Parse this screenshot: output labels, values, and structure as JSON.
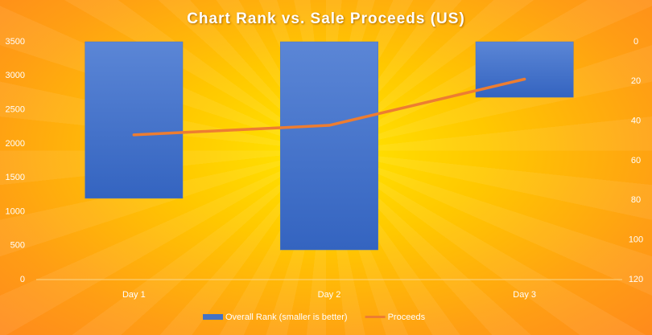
{
  "chart_data": {
    "type": "bar-line",
    "title": "Chart Rank vs. Sale Proceeds (US)",
    "categories": [
      "Day 1",
      "Day 2",
      "Day 3"
    ],
    "series": [
      {
        "name": "Overall Rank (smaller is better)",
        "type": "bar",
        "axis": "y2",
        "color": "#4472c4",
        "values": [
          79,
          105,
          28
        ]
      },
      {
        "name": "Proceeds",
        "type": "line",
        "color": "#ed7d31",
        "values": [
          2130,
          2270,
          2950
        ]
      }
    ],
    "ylim": [
      0,
      3500
    ],
    "yticks": [
      0,
      500,
      1000,
      1500,
      2000,
      2500,
      3000,
      3500
    ],
    "y2lim": [
      0,
      120
    ],
    "y2ticks": [
      0,
      20,
      40,
      60,
      80,
      100,
      120
    ],
    "y2_reversed": true,
    "grid": false,
    "legend": "bottom"
  }
}
